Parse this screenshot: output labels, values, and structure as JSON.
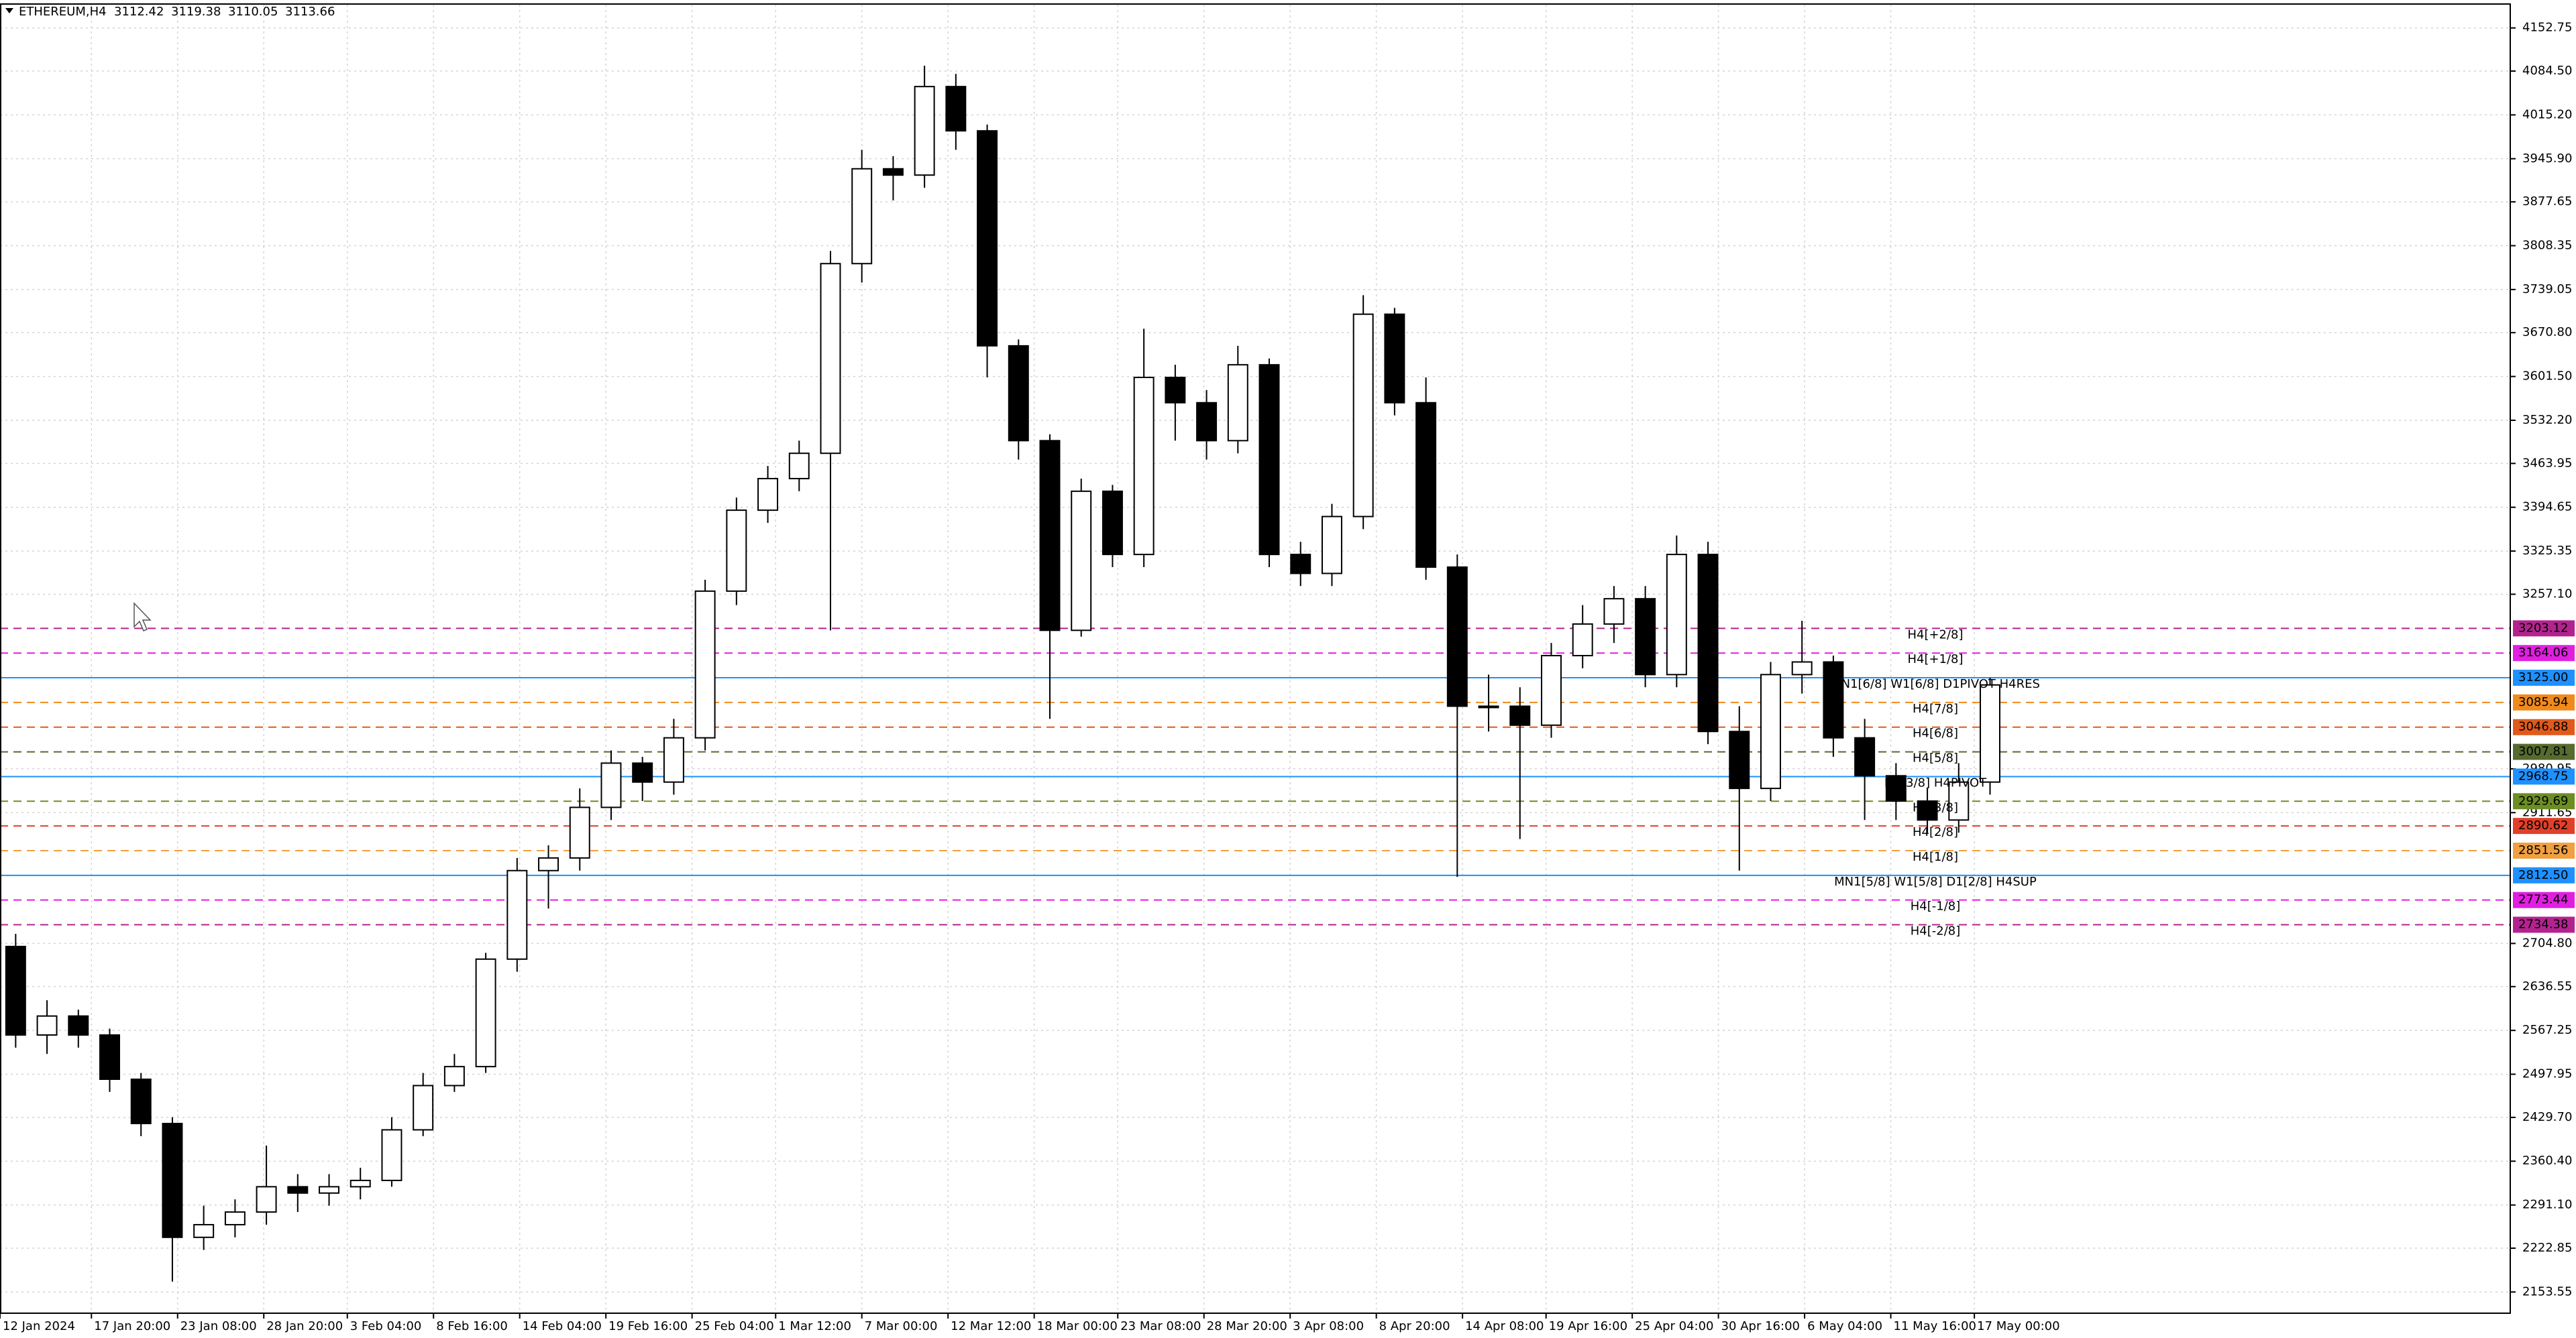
{
  "chart_data": {
    "type": "candlestick",
    "header": {
      "symbol": "ETHEREUM,H4",
      "values": [
        3112.42,
        3119.38,
        3110.05,
        3113.66
      ]
    },
    "x": [
      0,
      1,
      2,
      3,
      4,
      5,
      6,
      7,
      8,
      9,
      10,
      11,
      12,
      13,
      14,
      15,
      16,
      17,
      18,
      19,
      20,
      21,
      22,
      23,
      24,
      25,
      26,
      27,
      28,
      29,
      30,
      31,
      32,
      33,
      34,
      35,
      36,
      37,
      38,
      39,
      40,
      41,
      42,
      43,
      44,
      45,
      46,
      47,
      48,
      49,
      50,
      51,
      52,
      53,
      54,
      55,
      56,
      57,
      58,
      59,
      60,
      61,
      62,
      63
    ],
    "open": [
      2700,
      2560,
      2590,
      2560,
      2490,
      2420,
      2240,
      2260,
      2280,
      2320,
      2310,
      2320,
      2330,
      2410,
      2480,
      2510,
      2680,
      2820,
      2840,
      2920,
      2990,
      2960,
      3030,
      3262,
      3390,
      3440,
      3480,
      3780,
      3930,
      3920,
      4060,
      3990,
      3650,
      3500,
      3200,
      3420,
      3320,
      3600,
      3560,
      3500,
      3620,
      3320,
      3290,
      3380,
      3700,
      3560,
      3300,
      3080,
      3080,
      3050,
      3160,
      3210,
      3250,
      3130,
      3320,
      3040,
      2950,
      3130,
      3150,
      3030,
      2970,
      2930,
      2900,
      2960
    ],
    "high": [
      2720,
      2615,
      2600,
      2570,
      2500,
      2430,
      2290,
      2300,
      2385,
      2340,
      2340,
      2350,
      2430,
      2500,
      2530,
      2690,
      2840,
      2860,
      2950,
      3010,
      3000,
      3060,
      3280,
      3410,
      3460,
      3500,
      3800,
      3960,
      3950,
      4093,
      4080,
      4000,
      3660,
      3510,
      3440,
      3430,
      3677,
      3620,
      3580,
      3650,
      3630,
      3340,
      3400,
      3730,
      3710,
      3600,
      3320,
      3130,
      3110,
      3180,
      3240,
      3270,
      3270,
      3350,
      3340,
      3080,
      3150,
      3215,
      3160,
      3060,
      2990,
      2950,
      2990,
      3125
    ],
    "low": [
      2540,
      2530,
      2540,
      2470,
      2400,
      2170,
      2220,
      2240,
      2260,
      2280,
      2290,
      2300,
      2320,
      2400,
      2470,
      2500,
      2660,
      2760,
      2820,
      2900,
      2930,
      2940,
      3010,
      3240,
      3370,
      3420,
      3200,
      3750,
      3880,
      3900,
      3960,
      3600,
      3470,
      3060,
      3190,
      3300,
      3300,
      3500,
      3470,
      3480,
      3300,
      3270,
      3270,
      3360,
      3540,
      3280,
      2810,
      3040,
      2870,
      3030,
      3140,
      3180,
      3110,
      3110,
      3020,
      2820,
      2930,
      3100,
      3000,
      2900,
      2900,
      2880,
      2880,
      2940
    ],
    "close": [
      2560,
      2590,
      2560,
      2490,
      2420,
      2240,
      2260,
      2280,
      2320,
      2310,
      2320,
      2330,
      2410,
      2480,
      2510,
      2680,
      2820,
      2840,
      2920,
      2990,
      2960,
      3030,
      3262,
      3390,
      3440,
      3480,
      3780,
      3930,
      3920,
      4060,
      3990,
      3650,
      3500,
      3200,
      3420,
      3320,
      3600,
      3560,
      3500,
      3620,
      3320,
      3290,
      3380,
      3700,
      3560,
      3300,
      3080,
      3080,
      3050,
      3160,
      3210,
      3250,
      3130,
      3320,
      3040,
      2950,
      3130,
      3150,
      3030,
      2970,
      2930,
      2900,
      2960,
      3113.66
    ],
    "bull_color": "#ffffff",
    "bear_color": "#000000",
    "outline_color": "#000000",
    "xlim": [
      -0.5,
      79.6
    ],
    "xticks": [
      {
        "value": -0.5,
        "label": "12 Jan 2024"
      },
      {
        "value": 2.417,
        "label": "17 Jan 20:00"
      },
      {
        "value": 5.167,
        "label": "23 Jan 08:00"
      },
      {
        "value": 7.917,
        "label": "28 Jan 20:00"
      },
      {
        "value": 10.583,
        "label": "3 Feb 04:00"
      },
      {
        "value": 13.333,
        "label": "8 Feb 16:00"
      },
      {
        "value": 16.083,
        "label": "14 Feb 04:00"
      },
      {
        "value": 18.833,
        "label": "19 Feb 16:00"
      },
      {
        "value": 21.583,
        "label": "25 Feb 04:00"
      },
      {
        "value": 24.25,
        "label": "1 Mar 12:00"
      },
      {
        "value": 27,
        "label": "7 Mar 00:00"
      },
      {
        "value": 29.75,
        "label": "12 Mar 12:00"
      },
      {
        "value": 32.5,
        "label": "18 Mar 00:00"
      },
      {
        "value": 35.167,
        "label": "23 Mar 08:00"
      },
      {
        "value": 37.917,
        "label": "28 Mar 20:00"
      },
      {
        "value": 40.667,
        "label": "3 Apr 08:00"
      },
      {
        "value": 43.417,
        "label": "8 Apr 20:00"
      },
      {
        "value": 46.167,
        "label": "14 Apr 08:00"
      },
      {
        "value": 48.833,
        "label": "19 Apr 16:00"
      },
      {
        "value": 51.583,
        "label": "25 Apr 04:00"
      },
      {
        "value": 54.333,
        "label": "30 Apr 16:00"
      },
      {
        "value": 57.083,
        "label": "6 May 04:00"
      },
      {
        "value": 59.833,
        "label": "11 May 16:00"
      },
      {
        "value": 62.5,
        "label": "17 May 00:00"
      }
    ],
    "ylim": [
      2120,
      4189.5
    ],
    "yticks": [
      4152.75,
      {
        "value": 4084.5,
        "label": "4084.50"
      },
      {
        "value": 4015.2,
        "label": "4015.20"
      },
      {
        "value": 3945.9,
        "label": "3945.90"
      },
      3877.65,
      3808.35,
      3739.05,
      {
        "value": 3670.8,
        "label": "3670.80"
      },
      {
        "value": 3601.5,
        "label": "3601.50"
      },
      {
        "value": 3532.2,
        "label": "3532.20"
      },
      3463.95,
      3394.65,
      3325.35,
      {
        "value": 3257.1,
        "label": "3257.10"
      },
      2980.95,
      2911.65,
      {
        "value": 2704.8,
        "label": "2704.80"
      },
      2636.55,
      2567.25,
      2497.95,
      {
        "value": 2429.7,
        "label": "2429.70"
      },
      {
        "value": 2360.4,
        "label": "2360.40"
      },
      {
        "value": 2291.1,
        "label": "2291.10"
      },
      2222.85,
      2153.55
    ],
    "grid": true,
    "levels": [
      {
        "value": 3203.12,
        "value_label": "3203.12",
        "label": "H4[+2/8]",
        "color": "#b3238f",
        "style": "dashed"
      },
      {
        "value": 3164.06,
        "value_label": "3164.06",
        "label": "H4[+1/8]",
        "color": "#e01fe0",
        "style": "dashed"
      },
      {
        "value": 3125,
        "value_label": "3125.00",
        "label": "MN1[6/8] W1[6/8] D1PIVOT H4RES",
        "color": "#1e90ff",
        "style": "solid"
      },
      {
        "value": 3085.94,
        "value_label": "3085.94",
        "label": "H4[7/8]",
        "color": "#f08a1c",
        "style": "dashed"
      },
      {
        "value": 3046.88,
        "value_label": "3046.88",
        "label": "H4[6/8]",
        "color": "#e05a1c",
        "style": "dashed"
      },
      {
        "value": 3007.81,
        "value_label": "3007.81",
        "label": "H4[5/8]",
        "color": "#556b2f",
        "style": "dashed"
      },
      {
        "value": 2968.75,
        "value_label": "2968.75",
        "label": "D1[3/8] H4PIVOT",
        "color": "#1e90ff",
        "style": "solid"
      },
      {
        "value": 2929.69,
        "value_label": "2929.69",
        "label": "H4[3/8]",
        "color": "#6b8e23",
        "style": "dashed"
      },
      {
        "value": 2890.62,
        "value_label": "2890.62",
        "label": "H4[2/8]",
        "color": "#e0402a",
        "style": "dashed"
      },
      {
        "value": 2851.56,
        "value_label": "2851.56",
        "label": "H4[1/8]",
        "color": "#f0a040",
        "style": "dashed"
      },
      {
        "value": 2812.5,
        "value_label": "2812.50",
        "label": "MN1[5/8] W1[5/8] D1[2/8] H4SUP",
        "color": "#1e90ff",
        "style": "solid"
      },
      {
        "value": 2773.44,
        "value_label": "2773.44",
        "label": "H4[-1/8]",
        "color": "#e01fe0",
        "style": "dashed"
      },
      {
        "value": 2734.38,
        "value_label": "2734.38",
        "label": "H4[-2/8]",
        "color": "#b3238f",
        "style": "dashed"
      }
    ]
  }
}
